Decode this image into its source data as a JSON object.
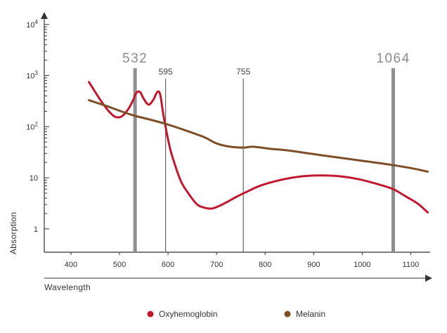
{
  "chart_data": {
    "type": "line",
    "title": "",
    "xlabel": "Wavelength",
    "ylabel": "Absorption",
    "y_scale": "log",
    "xlim": [
      345,
      1140
    ],
    "ylim": [
      0.35,
      15000
    ],
    "x_ticks": [
      {
        "value": 400,
        "label": "400"
      },
      {
        "value": 500,
        "label": "500"
      },
      {
        "value": 600,
        "label": "600"
      },
      {
        "value": 700,
        "label": "700"
      },
      {
        "value": 800,
        "label": "800"
      },
      {
        "value": 900,
        "label": "900"
      },
      {
        "value": 1000,
        "label": "1000"
      },
      {
        "value": 1100,
        "label": "1100"
      }
    ],
    "y_ticks": [
      {
        "value": 1,
        "base": "1",
        "exp": ""
      },
      {
        "value": 10,
        "base": "10",
        "exp": ""
      },
      {
        "value": 100,
        "base": "10",
        "exp": "2"
      },
      {
        "value": 1000,
        "base": "10",
        "exp": "3"
      },
      {
        "value": 10000,
        "base": "10",
        "exp": "4"
      }
    ],
    "grid": false,
    "legend_position": "bottom-center",
    "series": [
      {
        "name": "Oxyhemoglobin",
        "color": "#c0182e",
        "points": [
          [
            437,
            750
          ],
          [
            460,
            340
          ],
          [
            478,
            200
          ],
          [
            492,
            155
          ],
          [
            505,
            160
          ],
          [
            518,
            220
          ],
          [
            528,
            330
          ],
          [
            534,
            450
          ],
          [
            542,
            480
          ],
          [
            550,
            350
          ],
          [
            560,
            270
          ],
          [
            570,
            340
          ],
          [
            578,
            480
          ],
          [
            584,
            420
          ],
          [
            590,
            180
          ],
          [
            598,
            70
          ],
          [
            605,
            35
          ],
          [
            615,
            17
          ],
          [
            628,
            8
          ],
          [
            645,
            4.5
          ],
          [
            660,
            3
          ],
          [
            675,
            2.6
          ],
          [
            690,
            2.5
          ],
          [
            705,
            2.8
          ],
          [
            720,
            3.3
          ],
          [
            740,
            4.2
          ],
          [
            760,
            5.2
          ],
          [
            790,
            7
          ],
          [
            830,
            9
          ],
          [
            870,
            10.5
          ],
          [
            910,
            11.1
          ],
          [
            950,
            10.8
          ],
          [
            990,
            9.5
          ],
          [
            1030,
            7.6
          ],
          [
            1064,
            6
          ],
          [
            1090,
            4.3
          ],
          [
            1115,
            3.1
          ],
          [
            1135,
            2.1
          ]
        ]
      },
      {
        "name": "Melanin",
        "color": "#7d4e28",
        "points": [
          [
            437,
            330
          ],
          [
            470,
            260
          ],
          [
            500,
            205
          ],
          [
            530,
            165
          ],
          [
            560,
            140
          ],
          [
            600,
            110
          ],
          [
            640,
            82
          ],
          [
            675,
            62
          ],
          [
            700,
            47
          ],
          [
            725,
            41
          ],
          [
            755,
            39
          ],
          [
            775,
            40.5
          ],
          [
            810,
            37
          ],
          [
            850,
            34
          ],
          [
            900,
            29
          ],
          [
            950,
            25
          ],
          [
            1000,
            21.5
          ],
          [
            1050,
            18.5
          ],
          [
            1100,
            15.5
          ],
          [
            1135,
            13.2
          ]
        ]
      }
    ],
    "vertical_markers": [
      {
        "x": 532,
        "label": "532",
        "emphasis": "thick"
      },
      {
        "x": 595,
        "label": "595",
        "emphasis": "thin"
      },
      {
        "x": 755,
        "label": "755",
        "emphasis": "thin"
      },
      {
        "x": 1064,
        "label": "1064",
        "emphasis": "thick"
      }
    ],
    "colors": {
      "axis": "#333333",
      "thick_marker": "#8f8f8f",
      "thin_marker": "#444444",
      "marker_label_big": "#8a8a8a"
    }
  }
}
